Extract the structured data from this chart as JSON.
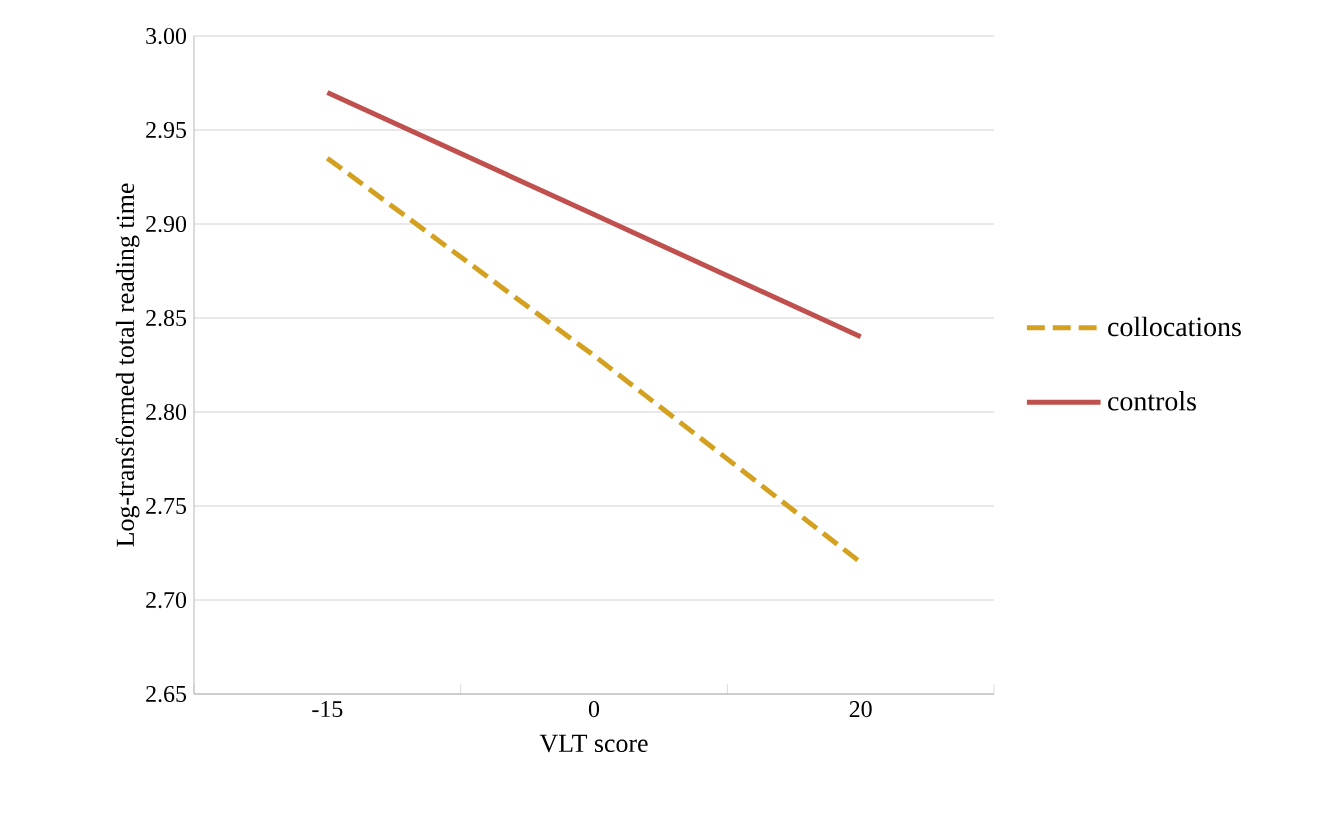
{
  "chart_data": {
    "type": "line",
    "xlabel": "VLT score",
    "ylabel": "Log-transformed total reading time",
    "categories": [
      "-15",
      "0",
      "20"
    ],
    "series": [
      {
        "name": "collocations",
        "color": "#d4a020",
        "line_style": "dashed",
        "values": [
          2.935,
          2.83,
          2.72
        ]
      },
      {
        "name": "controls",
        "color": "#c0504d",
        "line_style": "solid",
        "values": [
          2.97,
          2.905,
          2.84
        ]
      }
    ],
    "ylim": [
      2.65,
      3.0
    ],
    "yticks": [
      2.65,
      {
        "value": 2.7,
        "label": "2.70"
      },
      2.75,
      {
        "value": 2.8,
        "label": "2.80"
      },
      2.85,
      {
        "value": 2.9,
        "label": "2.90"
      },
      2.95,
      {
        "value": 3.0,
        "label": "3.00"
      }
    ],
    "grid": "y",
    "legend": "right"
  }
}
